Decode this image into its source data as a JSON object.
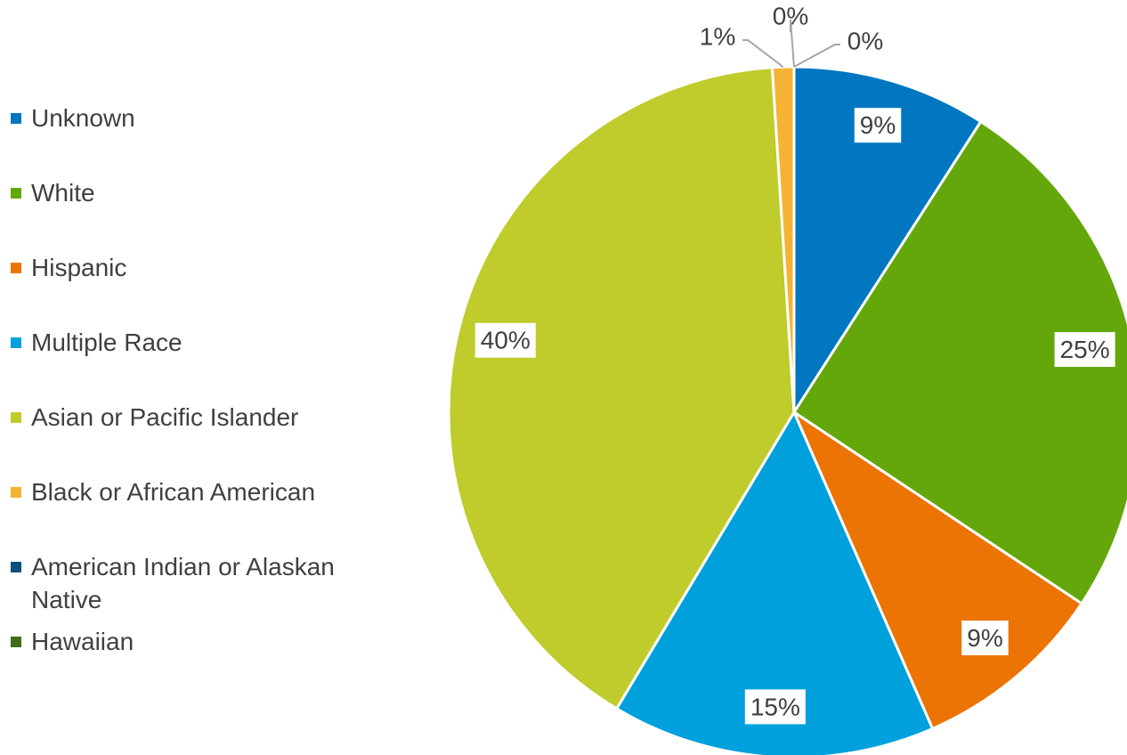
{
  "chart_data": {
    "type": "pie",
    "categories": [
      "Unknown",
      "White",
      "Hispanic",
      "Multiple Race",
      "Asian or Pacific Islander",
      "Black or African American",
      "American Indian or Alaskan Native",
      "Hawaiian"
    ],
    "values": [
      9,
      25,
      9,
      15,
      40,
      1,
      0,
      0
    ],
    "value_labels": [
      "9%",
      "25%",
      "9%",
      "15%",
      "40%",
      "1%",
      "0%",
      "0%"
    ],
    "colors": [
      "#0077c0",
      "#64a70b",
      "#ec7404",
      "#00a0dc",
      "#bfcc2b",
      "#f5b335",
      "#0b4f80",
      "#3f6e1a"
    ],
    "legend": "left"
  }
}
